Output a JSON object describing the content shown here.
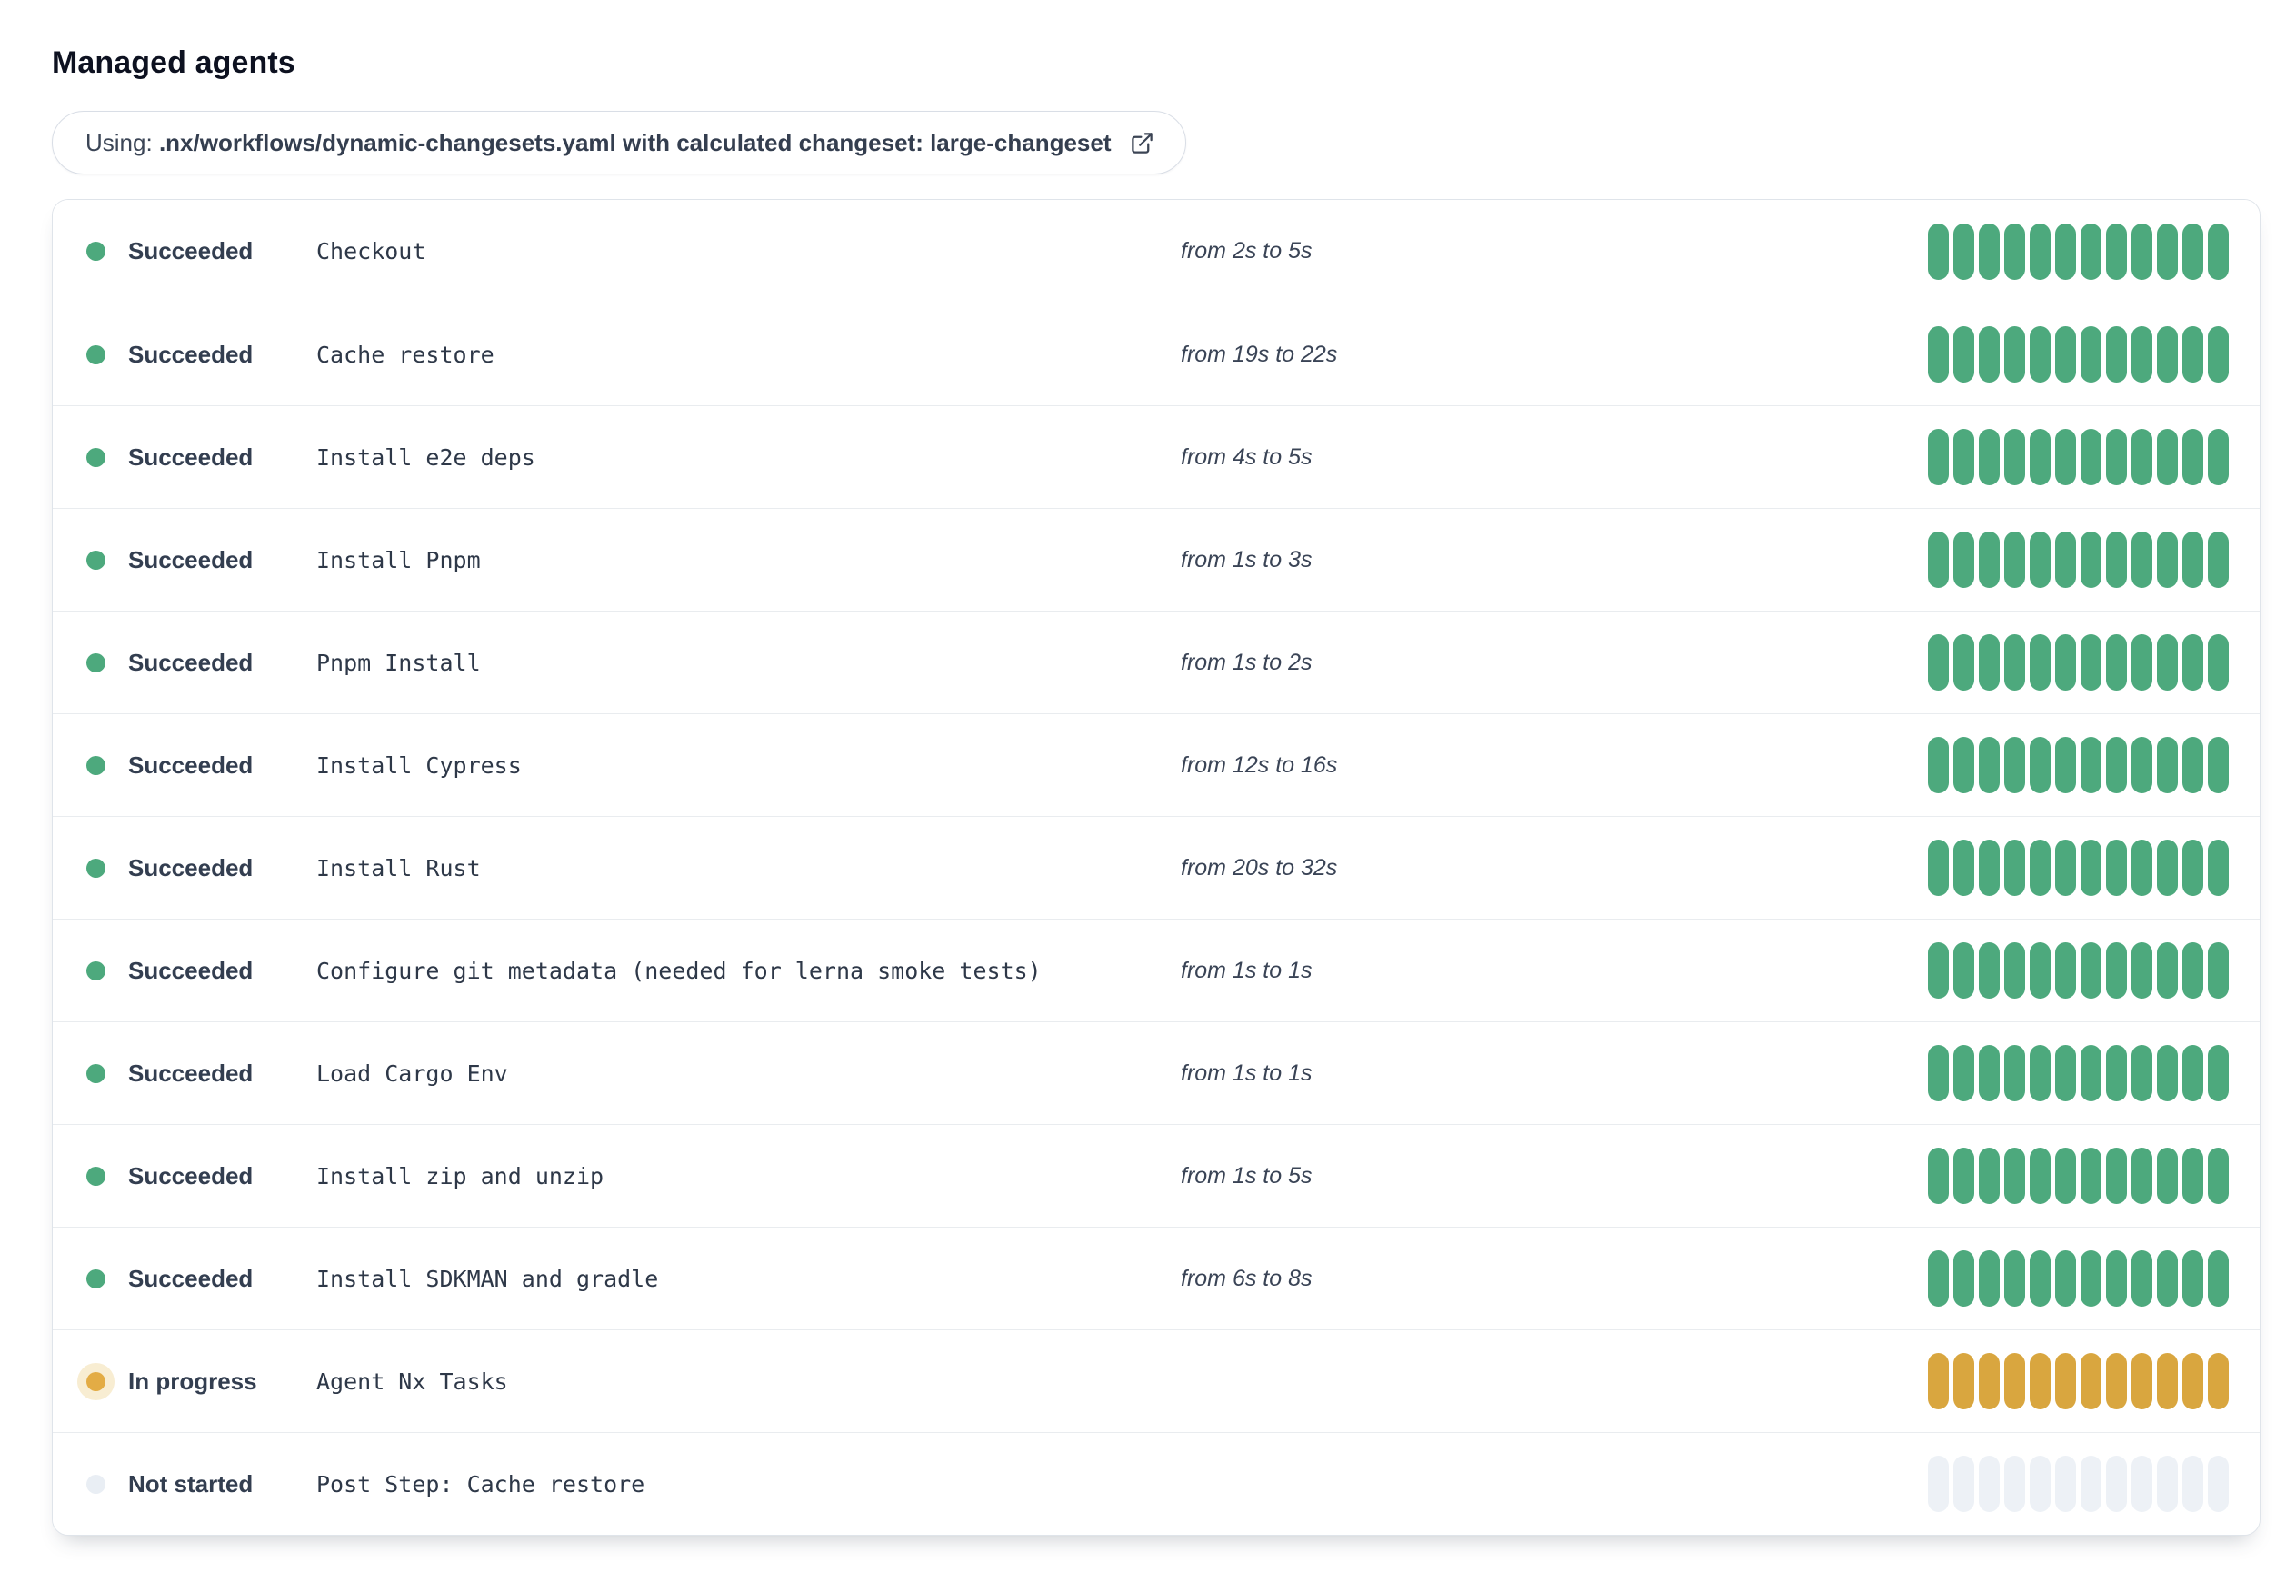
{
  "page": {
    "title": "Managed agents"
  },
  "banner": {
    "prefix": "Using:",
    "workflow": ".nx/workflows/dynamic-changesets.yaml with calculated changeset: large-changeset",
    "icon": "external-link-icon"
  },
  "colors": {
    "succeeded": "#4DA97D",
    "in_progress": "#D9A63F",
    "in_progress_halo": "#F8EDD2",
    "not_started": "#EDF1F6"
  },
  "progress": {
    "segments_per_row": 12
  },
  "steps": [
    {
      "status": "succeeded",
      "status_label": "Succeeded",
      "name": "Checkout",
      "duration": "from 2s to 5s"
    },
    {
      "status": "succeeded",
      "status_label": "Succeeded",
      "name": "Cache restore",
      "duration": "from 19s to 22s"
    },
    {
      "status": "succeeded",
      "status_label": "Succeeded",
      "name": "Install e2e deps",
      "duration": "from 4s to 5s"
    },
    {
      "status": "succeeded",
      "status_label": "Succeeded",
      "name": "Install Pnpm",
      "duration": "from 1s to 3s"
    },
    {
      "status": "succeeded",
      "status_label": "Succeeded",
      "name": "Pnpm Install",
      "duration": "from 1s to 2s"
    },
    {
      "status": "succeeded",
      "status_label": "Succeeded",
      "name": "Install Cypress",
      "duration": "from 12s to 16s"
    },
    {
      "status": "succeeded",
      "status_label": "Succeeded",
      "name": "Install Rust",
      "duration": "from 20s to 32s"
    },
    {
      "status": "succeeded",
      "status_label": "Succeeded",
      "name": "Configure git metadata (needed for lerna smoke tests)",
      "duration": "from 1s to 1s"
    },
    {
      "status": "succeeded",
      "status_label": "Succeeded",
      "name": "Load Cargo Env",
      "duration": "from 1s to 1s"
    },
    {
      "status": "succeeded",
      "status_label": "Succeeded",
      "name": "Install zip and unzip",
      "duration": "from 1s to 5s"
    },
    {
      "status": "succeeded",
      "status_label": "Succeeded",
      "name": "Install SDKMAN and gradle",
      "duration": "from 6s to 8s"
    },
    {
      "status": "in_progress",
      "status_label": "In progress",
      "name": "Agent Nx Tasks",
      "duration": ""
    },
    {
      "status": "not_started",
      "status_label": "Not started",
      "name": "Post Step: Cache restore",
      "duration": ""
    }
  ]
}
